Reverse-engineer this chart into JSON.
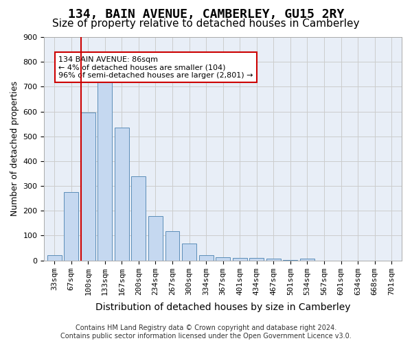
{
  "title": "134, BAIN AVENUE, CAMBERLEY, GU15 2RY",
  "subtitle": "Size of property relative to detached houses in Camberley",
  "xlabel": "Distribution of detached houses by size in Camberley",
  "ylabel": "Number of detached properties",
  "bar_values": [
    22,
    275,
    595,
    740,
    535,
    340,
    178,
    118,
    68,
    22,
    14,
    9,
    9,
    8,
    2,
    8,
    0,
    0,
    0,
    0,
    0
  ],
  "categories": [
    "33sqm",
    "67sqm",
    "100sqm",
    "133sqm",
    "167sqm",
    "200sqm",
    "234sqm",
    "267sqm",
    "300sqm",
    "334sqm",
    "367sqm",
    "401sqm",
    "434sqm",
    "467sqm",
    "501sqm",
    "534sqm",
    "567sqm",
    "601sqm",
    "634sqm",
    "668sqm",
    "701sqm"
  ],
  "bar_color": "#c5d8f0",
  "bar_edge_color": "#5b8db8",
  "vline_color": "#cc0000",
  "annotation_text": "134 BAIN AVENUE: 86sqm\n← 4% of detached houses are smaller (104)\n96% of semi-detached houses are larger (2,801) →",
  "annotation_box_color": "#cc0000",
  "ylim": [
    0,
    900
  ],
  "yticks": [
    0,
    100,
    200,
    300,
    400,
    500,
    600,
    700,
    800,
    900
  ],
  "grid_color": "#cccccc",
  "bg_color": "#e8eef7",
  "footer": "Contains HM Land Registry data © Crown copyright and database right 2024.\nContains public sector information licensed under the Open Government Licence v3.0.",
  "title_fontsize": 13,
  "subtitle_fontsize": 11,
  "xlabel_fontsize": 10,
  "ylabel_fontsize": 9,
  "tick_fontsize": 8,
  "annotation_fontsize": 8,
  "footer_fontsize": 7
}
